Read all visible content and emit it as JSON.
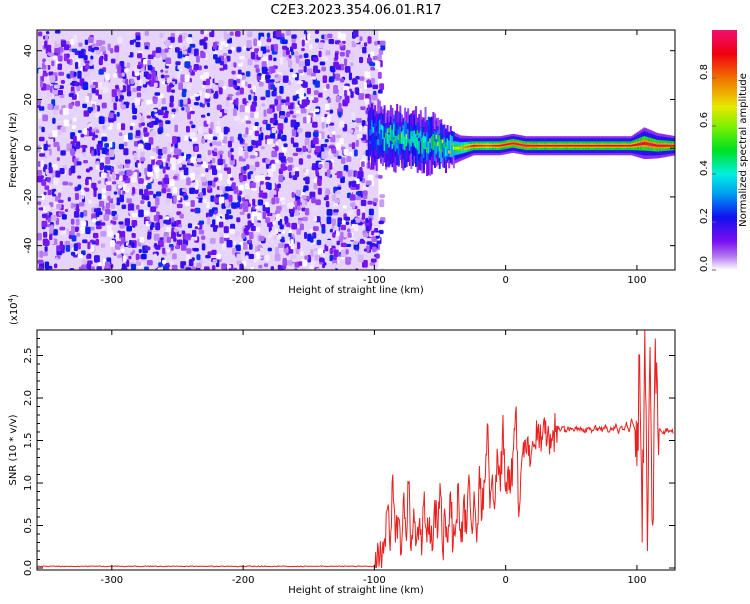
{
  "title": "C2E3.2023.354.06.01.R17",
  "chart_data": [
    {
      "type": "heatmap",
      "xlabel": "Height of straight line (km)",
      "ylabel": "Frequency (Hz)",
      "xlim": [
        -357,
        129
      ],
      "ylim": [
        -50,
        48.5
      ],
      "xticks": [
        -300,
        -200,
        -100,
        0,
        100
      ],
      "yticks": [
        -40,
        -20,
        0,
        20,
        40
      ],
      "noise_region_x": [
        -357,
        -100
      ],
      "noise_amplitude_range": [
        0.0,
        0.25
      ],
      "ridge": {
        "x": [
          -105,
          -95,
          -85,
          -75,
          -65,
          -55,
          -45,
          -35,
          -25,
          -15,
          -5,
          5,
          15,
          25,
          40,
          60,
          80,
          95,
          105,
          115,
          129
        ],
        "freq_hz": [
          6,
          5,
          4,
          3,
          3,
          2,
          0,
          0,
          1,
          1,
          1,
          2,
          1,
          1,
          1,
          1,
          1,
          1,
          2,
          1,
          1
        ],
        "width_hz": [
          10,
          9,
          9,
          8,
          9,
          8,
          6,
          4,
          3,
          3,
          3,
          3,
          3,
          3,
          3,
          3,
          3,
          3,
          5,
          4,
          3
        ],
        "peak_amplitude": [
          0.3,
          0.4,
          0.45,
          0.5,
          0.45,
          0.5,
          0.55,
          0.7,
          0.9,
          0.85,
          0.9,
          0.95,
          0.95,
          0.9,
          0.9,
          0.9,
          0.9,
          0.9,
          0.95,
          0.95,
          0.9
        ]
      },
      "colorbar": {
        "label": "Normalized spectral amplitude",
        "ticks": [
          "0.0",
          "0.2",
          "0.4",
          "0.6",
          "0.8"
        ],
        "range": [
          0,
          1
        ]
      }
    },
    {
      "type": "line",
      "xlabel": "Height of straight line (km)",
      "ylabel": "SNR (10 * v/v)",
      "multiplier": "(x10",
      "multiplier_exp": "4",
      "multiplier_close": ")",
      "xlim": [
        -357,
        129
      ],
      "ylim": [
        0,
        2.8
      ],
      "xticks": [
        -300,
        -200,
        -100,
        0,
        100
      ],
      "yticks": [
        "0.0",
        "0.5",
        "1.0",
        "1.5",
        "2.0",
        "2.5"
      ],
      "series_color": "#e8201e",
      "baseline_before_x": -100,
      "baseline_value": 0.02,
      "x_start": -100,
      "x_step": 2,
      "values": [
        0.03,
        0.05,
        0.1,
        0.2,
        0.35,
        0.7,
        0.2,
        1.1,
        0.3,
        0.6,
        0.15,
        0.8,
        0.4,
        1.0,
        0.2,
        0.7,
        0.3,
        0.5,
        0.15,
        0.9,
        0.3,
        0.6,
        0.2,
        0.8,
        0.35,
        1.0,
        0.2,
        0.6,
        0.3,
        0.9,
        0.25,
        0.5,
        1.0,
        0.3,
        0.8,
        0.4,
        1.1,
        0.5,
        0.9,
        0.3,
        1.2,
        0.6,
        1.0,
        1.7,
        0.7,
        1.1,
        0.8,
        1.3,
        0.9,
        1.8,
        0.9,
        1.2,
        1.0,
        1.4,
        1.9,
        0.6,
        1.2,
        1.3,
        1.35,
        1.45,
        1.4,
        1.45,
        1.5,
        1.55,
        1.52,
        1.58,
        1.6,
        1.58,
        1.62,
        1.6,
        1.63,
        1.62,
        1.66,
        1.6,
        1.64,
        1.63,
        1.61,
        1.66,
        1.62,
        1.64,
        1.6,
        1.65,
        1.63,
        1.62,
        1.67,
        1.61,
        1.64,
        1.63,
        1.68,
        1.6,
        1.65,
        1.62,
        1.7,
        1.58,
        1.66,
        1.63,
        1.72,
        1.6,
        1.75,
        1.65,
        1.2,
        2.5,
        0.3,
        2.8,
        0.2,
        2.6,
        0.5,
        2.7,
        1.6,
        1.62,
        1.58,
        1.64,
        1.6,
        1.62,
        1.59
      ]
    }
  ]
}
